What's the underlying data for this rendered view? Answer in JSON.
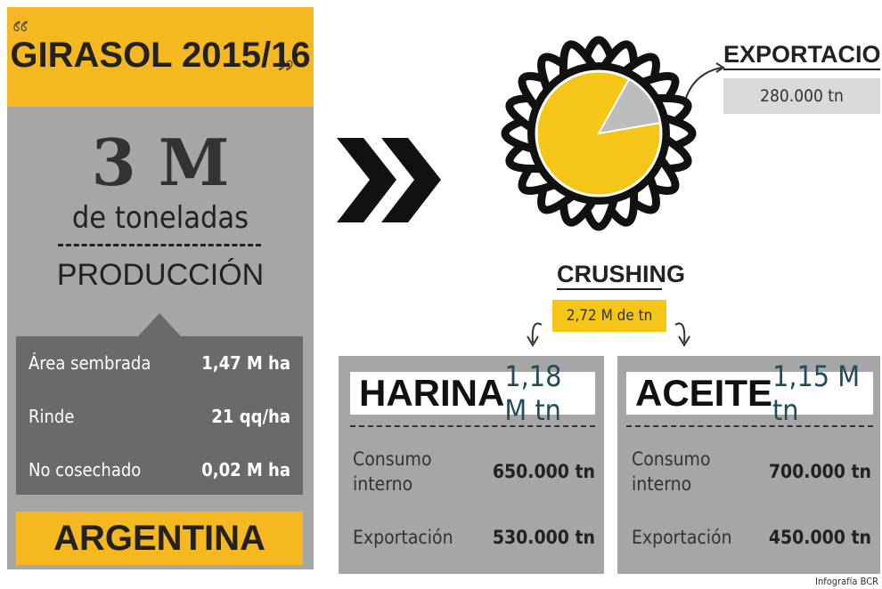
{
  "header": {
    "title": "GIRASOL 2015/16"
  },
  "production": {
    "amount": "3 M",
    "unit": "de toneladas",
    "label": "PRODUCCIÓN",
    "rows": [
      [
        "Área sembrada",
        "1,47 M ha"
      ],
      [
        "Rinde",
        "21 qq/ha"
      ],
      [
        "No cosechado",
        "0,02 M ha"
      ]
    ],
    "country": "ARGENTINA"
  },
  "exports": {
    "title": "EXPORTACIONES",
    "value": "280.000 tn"
  },
  "crushing": {
    "title": "CRUSHING",
    "value": "2,72 M de tn"
  },
  "products": [
    {
      "name": "HARINA",
      "total": "1,18 M tn",
      "rows": [
        [
          "Consumo interno",
          "650.000 tn"
        ],
        [
          "Exportación",
          "530.000 tn"
        ]
      ]
    },
    {
      "name": "ACEITE",
      "total": "1,15 M tn",
      "rows": [
        [
          "Consumo interno",
          "700.000 tn"
        ],
        [
          "Exportación",
          "450.000 tn"
        ]
      ]
    }
  ],
  "footer": {
    "credit": "Infografía BCR"
  }
}
